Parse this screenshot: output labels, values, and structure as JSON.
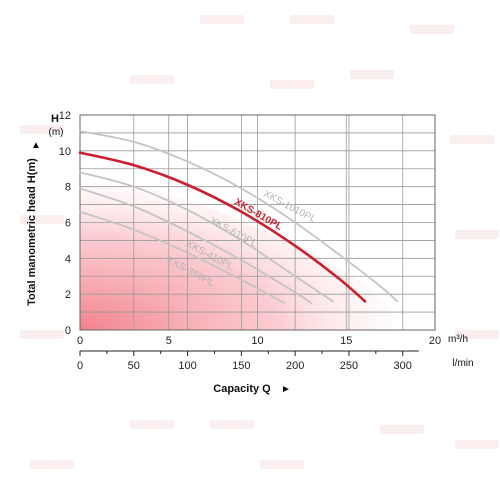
{
  "chart_data": {
    "type": "line",
    "title": "",
    "ylabel": "Total manometric head H(m)",
    "y_axis_letter": "H",
    "y_unit": "(m)",
    "xlabel": "Capacity Q",
    "x_units": {
      "m3h": "m³/h",
      "lmin": "l/min"
    },
    "ylim": [
      0,
      12
    ],
    "xlim_m3h": [
      0,
      20
    ],
    "xlim_lmin": [
      0,
      330
    ],
    "y_ticks": [
      "0",
      "2",
      "4",
      "6",
      "8",
      "10",
      "12"
    ],
    "x_ticks_m3h": [
      "0",
      "5",
      "10",
      "15",
      "20"
    ],
    "x_ticks_lmin": [
      "0",
      "50",
      "100",
      "150",
      "200",
      "250",
      "300"
    ],
    "grid": true,
    "highlight_color": "#cc1f2e",
    "series": [
      {
        "name": "XKS-1010PL",
        "highlighted": false,
        "x": [
          0,
          50,
          100,
          150,
          200,
          250,
          280,
          295
        ],
        "y": [
          11.1,
          10.5,
          9.4,
          7.9,
          6.0,
          3.8,
          2.4,
          1.6
        ]
      },
      {
        "name": "XKS-810PL",
        "highlighted": true,
        "x": [
          0,
          50,
          100,
          150,
          200,
          240,
          265
        ],
        "y": [
          9.9,
          9.2,
          8.1,
          6.6,
          4.7,
          2.9,
          1.6
        ]
      },
      {
        "name": "XKS-610PL",
        "highlighted": false,
        "x": [
          0,
          50,
          100,
          150,
          200,
          235
        ],
        "y": [
          8.8,
          8.0,
          6.7,
          5.0,
          3.0,
          1.6
        ]
      },
      {
        "name": "XKS-410PL",
        "highlighted": false,
        "x": [
          0,
          50,
          100,
          150,
          200,
          215
        ],
        "y": [
          7.9,
          6.9,
          5.5,
          3.9,
          2.1,
          1.5
        ]
      },
      {
        "name": "XKS-360PL",
        "highlighted": false,
        "x": [
          0,
          50,
          100,
          150,
          190
        ],
        "y": [
          6.6,
          5.6,
          4.3,
          2.8,
          1.5
        ]
      }
    ]
  }
}
